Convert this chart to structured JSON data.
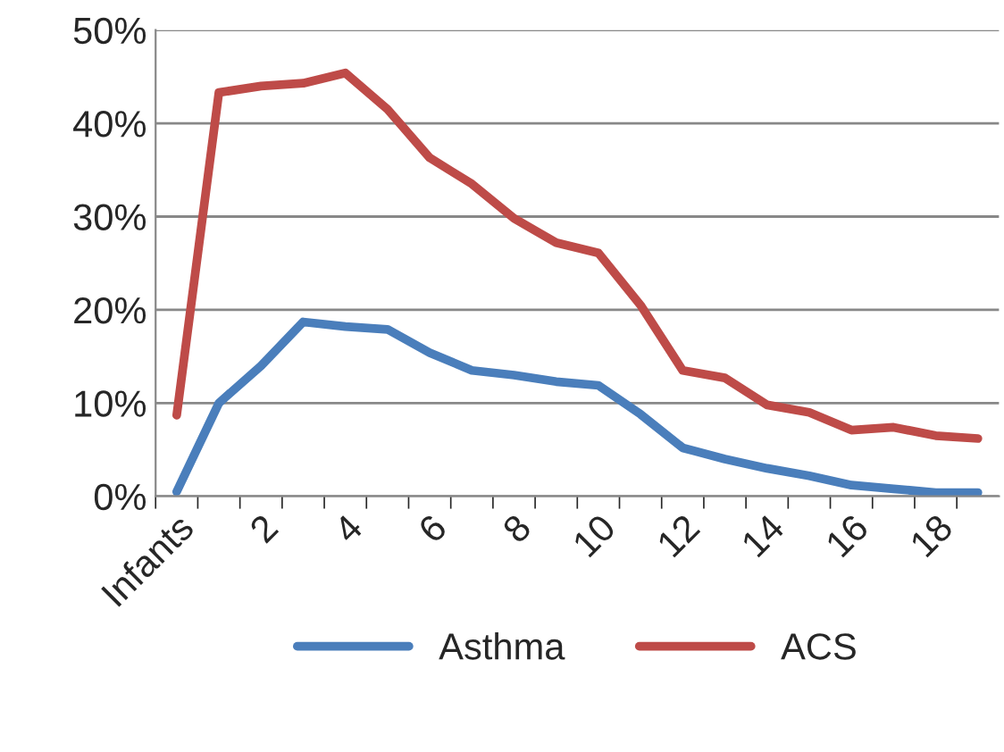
{
  "chart_data": {
    "type": "line",
    "categories": [
      "Infants",
      null,
      "2",
      null,
      "4",
      null,
      "6",
      null,
      "8",
      null,
      "10",
      null,
      "12",
      null,
      "14",
      null,
      "16",
      null,
      "18",
      null
    ],
    "series": [
      {
        "name": "Asthma",
        "color": "#4a7ebb",
        "values": [
          0.5,
          10,
          14,
          18.7,
          18.2,
          17.9,
          15.4,
          13.5,
          13,
          12.3,
          11.9,
          8.8,
          5.2,
          4,
          3,
          2.2,
          1.2,
          0.8,
          0.4,
          0.4
        ]
      },
      {
        "name": "ACS",
        "color": "#be4b48",
        "values": [
          8.7,
          43.3,
          44,
          44.3,
          45.4,
          41.5,
          36.3,
          33.5,
          29.8,
          27.2,
          26.1,
          20.5,
          13.5,
          12.7,
          9.8,
          9,
          7.1,
          7.4,
          6.5,
          6.2
        ]
      }
    ],
    "ylim": [
      0,
      50
    ],
    "yticks": [
      {
        "value": 0,
        "label": "0%"
      },
      {
        "value": 10,
        "label": "10%"
      },
      {
        "value": 20,
        "label": "20%"
      },
      {
        "value": 30,
        "label": "30%"
      },
      {
        "value": 40,
        "label": "40%"
      },
      {
        "value": 50,
        "label": "50%"
      }
    ],
    "grid": "y",
    "legend": "bottom",
    "marker": "none",
    "line_style": "solid"
  }
}
